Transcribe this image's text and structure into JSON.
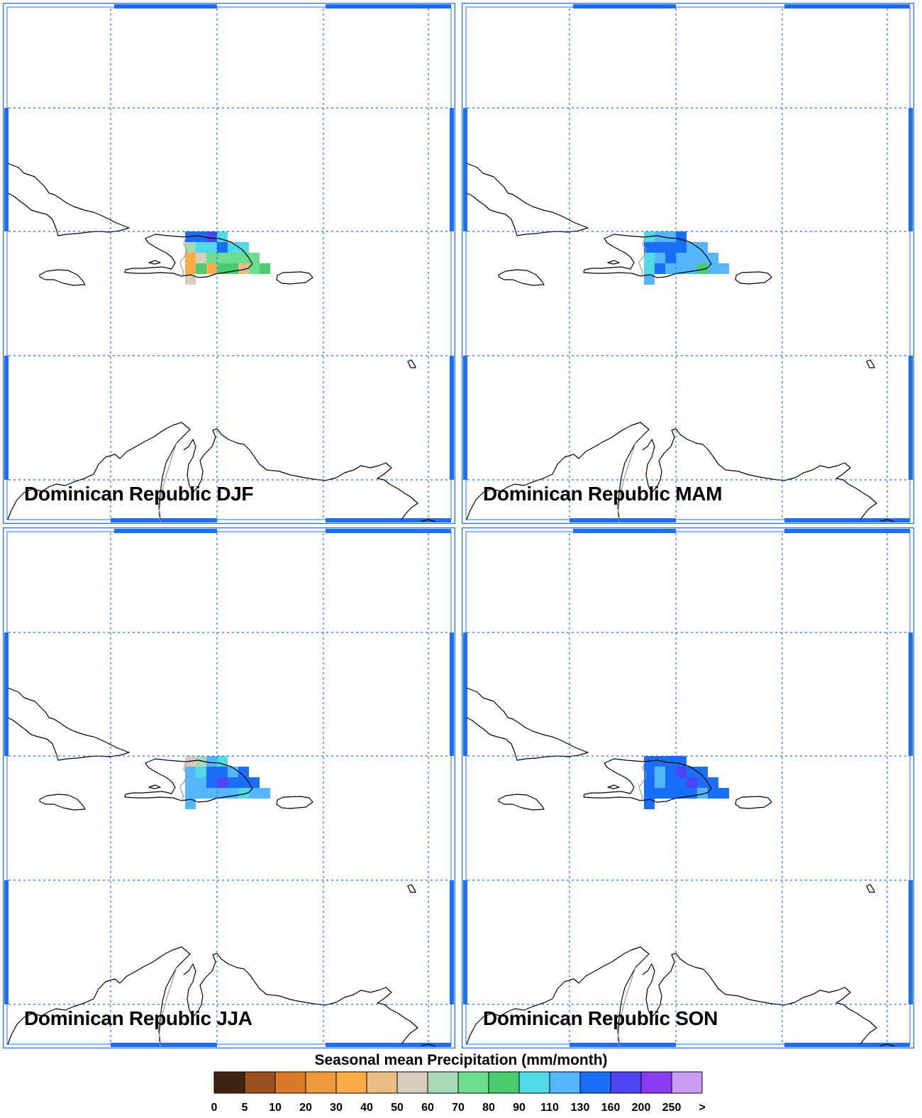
{
  "panels": [
    {
      "id": "djf",
      "title": "Dominican Republic DJF"
    },
    {
      "id": "mam",
      "title": "Dominican Republic MAM"
    },
    {
      "id": "jja",
      "title": "Dominican Republic JJA"
    },
    {
      "id": "son",
      "title": "Dominican Republic SON"
    }
  ],
  "legend": {
    "title": "Seasonal mean Precipitation (mm/month)",
    "tick_labels": [
      "0",
      "5",
      "10",
      "20",
      "30",
      "40",
      "50",
      "60",
      "70",
      "80",
      "90",
      "110",
      "130",
      "160",
      "200",
      "250",
      ">"
    ],
    "colors": [
      "#3f2310",
      "#9a5120",
      "#d77b2b",
      "#ec9a3b",
      "#fbab48",
      "#e9bc85",
      "#d8ccbe",
      "#a8d9b5",
      "#6ddc8f",
      "#4acb70",
      "#52d9e6",
      "#56b6fb",
      "#1a6ef8",
      "#4d45f4",
      "#8a3cf2",
      "#c99df3"
    ]
  },
  "colors": {
    "grid_line": "#1a6ef8",
    "coastline": "#000000",
    "border": "#9a9a9a",
    "frame": "#1a6ef8"
  }
}
